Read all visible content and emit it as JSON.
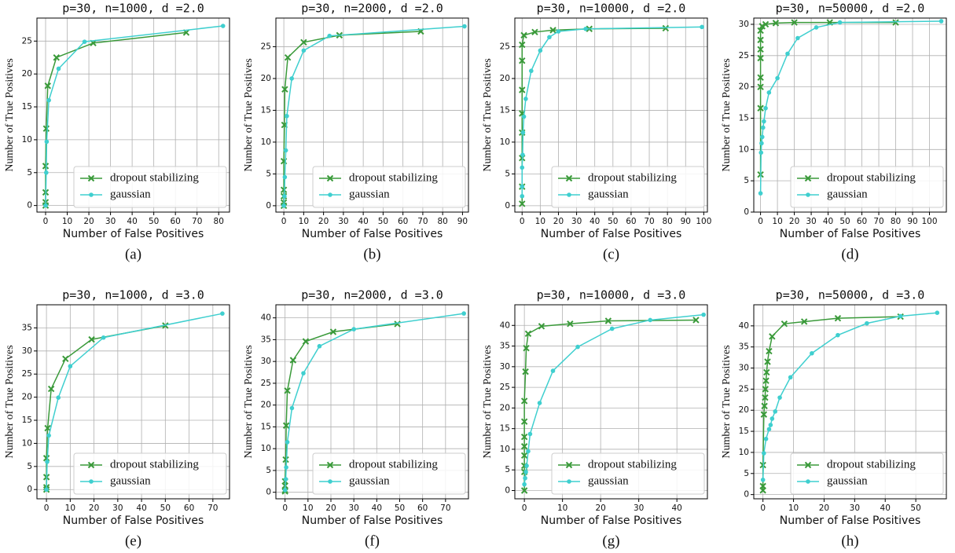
{
  "chart_data": [
    {
      "type": "line",
      "title": "p=30, n=1000, d =2.0",
      "xlabel": "Number of False Positives",
      "ylabel": "Number of True Positives",
      "caption": "(a)",
      "xlim": [
        -4,
        85
      ],
      "xticks": [
        0,
        10,
        20,
        30,
        40,
        50,
        60,
        70,
        80
      ],
      "ylim": [
        -1,
        28.5
      ],
      "yticks": [
        0,
        5,
        10,
        15,
        20,
        25
      ],
      "grid": true,
      "legend": "lower right",
      "series": [
        {
          "name": "dropout stabilizing",
          "color": "#3a9a3a",
          "marker": "x",
          "x": [
            0,
            0,
            0,
            0,
            0.3,
            1,
            5,
            22,
            65
          ],
          "values": [
            0,
            0.5,
            2,
            6,
            11.7,
            18.2,
            22.5,
            24.7,
            26.3
          ]
        },
        {
          "name": "gaussian",
          "color": "#3fcfcf",
          "marker": "o",
          "x": [
            0,
            0.3,
            0.5,
            1.5,
            6,
            18,
            82
          ],
          "values": [
            0,
            5,
            9.7,
            16,
            20.8,
            24.9,
            27.3
          ]
        }
      ]
    },
    {
      "type": "line",
      "title": "p=30, n=2000, d =2.0",
      "xlabel": "Number of False Positives",
      "ylabel": "Number of True Positives",
      "caption": "(b)",
      "xlim": [
        -4,
        93
      ],
      "xticks": [
        0,
        10,
        20,
        30,
        40,
        50,
        60,
        70,
        80,
        90
      ],
      "ylim": [
        -1,
        29.5
      ],
      "yticks": [
        0,
        5,
        10,
        15,
        20,
        25
      ],
      "grid": true,
      "legend": "lower right",
      "series": [
        {
          "name": "dropout stabilizing",
          "color": "#3a9a3a",
          "marker": "x",
          "x": [
            0,
            0,
            0,
            0,
            0,
            0.3,
            0.5,
            2,
            10,
            28,
            69
          ],
          "values": [
            0,
            0.5,
            1.5,
            2.5,
            7,
            12.7,
            18.3,
            23.3,
            25.7,
            26.8,
            27.4
          ]
        },
        {
          "name": "gaussian",
          "color": "#3fcfcf",
          "marker": "o",
          "x": [
            0,
            0.3,
            0.5,
            1,
            1.5,
            4,
            10,
            23,
            91
          ],
          "values": [
            0,
            1.5,
            4.5,
            8.7,
            14.1,
            20,
            24.4,
            26.7,
            28.2
          ]
        }
      ]
    },
    {
      "type": "line",
      "title": "p=30, n=10000, d =2.0",
      "xlabel": "Number of False Positives",
      "ylabel": "Number of True Positives",
      "caption": "(c)",
      "xlim": [
        -4,
        102
      ],
      "xticks": [
        0,
        10,
        20,
        30,
        40,
        50,
        60,
        70,
        80,
        90,
        100
      ],
      "ylim": [
        -1,
        29.5
      ],
      "yticks": [
        0,
        5,
        10,
        15,
        20,
        25
      ],
      "grid": true,
      "legend": "lower right",
      "series": [
        {
          "name": "dropout stabilizing",
          "color": "#3a9a3a",
          "marker": "x",
          "x": [
            0,
            0,
            0,
            0,
            0,
            0,
            0,
            0,
            1,
            7,
            17,
            37,
            79
          ],
          "values": [
            0.3,
            3,
            7.5,
            11.5,
            14.5,
            18.2,
            22.8,
            25.3,
            26.8,
            27.3,
            27.6,
            27.8,
            27.9
          ]
        },
        {
          "name": "gaussian",
          "color": "#3fcfcf",
          "marker": "o",
          "x": [
            0,
            0,
            0,
            0.3,
            0.5,
            1,
            2,
            5,
            10,
            15,
            20,
            35,
            99
          ],
          "values": [
            1.5,
            3,
            6,
            8,
            11.5,
            14,
            16.8,
            21.2,
            24.4,
            26.5,
            27.4,
            27.8,
            28.1
          ]
        }
      ]
    },
    {
      "type": "line",
      "title": "p=30, n=50000, d =2.0",
      "xlabel": "Number of False Positives",
      "ylabel": "Number of True Positives",
      "caption": "(d)",
      "xlim": [
        -4,
        110
      ],
      "xticks": [
        0,
        10,
        20,
        30,
        40,
        50,
        60,
        70,
        80,
        90,
        100
      ],
      "ylim": [
        0,
        31
      ],
      "yticks": [
        0,
        5,
        10,
        15,
        20,
        25,
        30
      ],
      "grid": true,
      "legend": "lower right",
      "series": [
        {
          "name": "dropout stabilizing",
          "color": "#3a9a3a",
          "marker": "x",
          "x": [
            0,
            0,
            0,
            0,
            0,
            0,
            0,
            0,
            1,
            3,
            9,
            20,
            41,
            80
          ],
          "values": [
            6,
            16.6,
            20,
            21.5,
            24.6,
            26,
            27.5,
            29,
            29.7,
            30,
            30.2,
            30.3,
            30.3,
            30.3
          ]
        },
        {
          "name": "gaussian",
          "color": "#3fcfcf",
          "marker": "o",
          "x": [
            0,
            0.3,
            0.6,
            1,
            1.5,
            2,
            3,
            5,
            10,
            16,
            22,
            33,
            47,
            107
          ],
          "values": [
            3,
            9.5,
            11,
            12,
            13.5,
            14.5,
            16.6,
            19.1,
            21.4,
            25.3,
            27.8,
            29.5,
            30.3,
            30.5
          ]
        }
      ]
    },
    {
      "type": "line",
      "title": "p=30, n=1000, d =3.0",
      "xlabel": "Number of False Positives",
      "ylabel": "Number of True Positives",
      "caption": "(e)",
      "xlim": [
        -4,
        77
      ],
      "xticks": [
        0,
        10,
        20,
        30,
        40,
        50,
        60,
        70
      ],
      "ylim": [
        -2,
        40
      ],
      "yticks": [
        0,
        5,
        10,
        15,
        20,
        25,
        30,
        35
      ],
      "grid": true,
      "legend": "lower right",
      "series": [
        {
          "name": "dropout stabilizing",
          "color": "#3a9a3a",
          "marker": "x",
          "x": [
            0,
            0,
            0,
            0,
            0.5,
            2,
            8,
            19,
            50
          ],
          "values": [
            0,
            0.5,
            2.7,
            6.8,
            13.3,
            21.8,
            28.3,
            32.5,
            35.5
          ]
        },
        {
          "name": "gaussian",
          "color": "#3fcfcf",
          "marker": "o",
          "x": [
            0,
            0.3,
            1,
            5,
            10,
            24,
            74
          ],
          "values": [
            0,
            6,
            11.7,
            19.9,
            26.7,
            32.9,
            38.1
          ]
        }
      ]
    },
    {
      "type": "line",
      "title": "p=30, n=2000, d =3.0",
      "xlabel": "Number of False Positives",
      "ylabel": "Number of True Positives",
      "caption": "(f)",
      "xlim": [
        -4,
        80
      ],
      "xticks": [
        0,
        10,
        20,
        30,
        40,
        50,
        60,
        70
      ],
      "ylim": [
        -1.5,
        43
      ],
      "yticks": [
        0,
        5,
        10,
        15,
        20,
        25,
        30,
        35,
        40
      ],
      "grid": true,
      "legend": "lower right",
      "series": [
        {
          "name": "dropout stabilizing",
          "color": "#3a9a3a",
          "marker": "x",
          "x": [
            0,
            0,
            0,
            0,
            0.3,
            0.5,
            1,
            3.5,
            9,
            21,
            49
          ],
          "values": [
            0.2,
            0.5,
            1.5,
            2.5,
            7.5,
            15.3,
            23.3,
            30.3,
            34.6,
            36.8,
            38.6
          ]
        },
        {
          "name": "gaussian",
          "color": "#3fcfcf",
          "marker": "o",
          "x": [
            0,
            0.3,
            0.5,
            1,
            3,
            8,
            15,
            30,
            78
          ],
          "values": [
            0.5,
            3,
            5.7,
            11.5,
            19.3,
            27.3,
            33.5,
            37.4,
            41
          ]
        }
      ]
    },
    {
      "type": "line",
      "title": "p=30, n=10000, d =3.0",
      "xlabel": "Number of False Positives",
      "ylabel": "Number of True Positives",
      "caption": "(g)",
      "xlim": [
        -2.5,
        48
      ],
      "xticks": [
        0,
        10,
        20,
        30,
        40
      ],
      "ylim": [
        -2,
        45
      ],
      "yticks": [
        0,
        5,
        10,
        15,
        20,
        25,
        30,
        35,
        40
      ],
      "grid": true,
      "legend": "lower right",
      "series": [
        {
          "name": "dropout stabilizing",
          "color": "#3a9a3a",
          "marker": "x",
          "x": [
            0,
            0,
            0,
            0,
            0,
            0,
            0,
            0,
            0.3,
            0.5,
            1,
            4.5,
            12,
            22,
            45
          ],
          "values": [
            0,
            4.5,
            6,
            8.5,
            10.7,
            13,
            16.7,
            21.7,
            28.8,
            34.5,
            38,
            39.8,
            40.4,
            41.1,
            41.3
          ]
        },
        {
          "name": "gaussian",
          "color": "#3fcfcf",
          "marker": "o",
          "x": [
            0,
            0.2,
            0.4,
            0.6,
            1,
            1.5,
            4,
            7.5,
            14,
            23,
            33,
            47
          ],
          "values": [
            1.5,
            3,
            4.5,
            6,
            9.5,
            13.7,
            21.2,
            29,
            34.8,
            39.2,
            41.3,
            42.6
          ]
        }
      ]
    },
    {
      "type": "line",
      "title": "p=30, n=50000, d =3.0",
      "xlabel": "Number of False Positives",
      "ylabel": "Number of True Positives",
      "caption": "(h)",
      "xlim": [
        -3,
        60
      ],
      "xticks": [
        0,
        10,
        20,
        30,
        40,
        50
      ],
      "ylim": [
        -1,
        45
      ],
      "yticks": [
        0,
        5,
        10,
        15,
        20,
        25,
        30,
        35,
        40
      ],
      "grid": true,
      "legend": "lower right",
      "series": [
        {
          "name": "dropout stabilizing",
          "color": "#3a9a3a",
          "marker": "x",
          "x": [
            0,
            0,
            0,
            0.3,
            0.5,
            0.7,
            0.8,
            1,
            1.2,
            1.5,
            2,
            3,
            7,
            13.5,
            24.5,
            45
          ],
          "values": [
            1,
            2,
            7,
            19,
            21,
            23,
            25,
            27,
            29,
            31.5,
            34,
            37.5,
            40.5,
            41,
            41.8,
            42.2
          ]
        },
        {
          "name": "gaussian",
          "color": "#3fcfcf",
          "marker": "o",
          "x": [
            0,
            0.3,
            1,
            2,
            2.5,
            3,
            4,
            5.5,
            9,
            16,
            24.5,
            34,
            45,
            57
          ],
          "values": [
            3.5,
            9.8,
            13.2,
            15.5,
            16.5,
            18,
            19.7,
            23,
            27.8,
            33.5,
            37.8,
            40.6,
            42.3,
            43.1
          ]
        }
      ]
    }
  ]
}
